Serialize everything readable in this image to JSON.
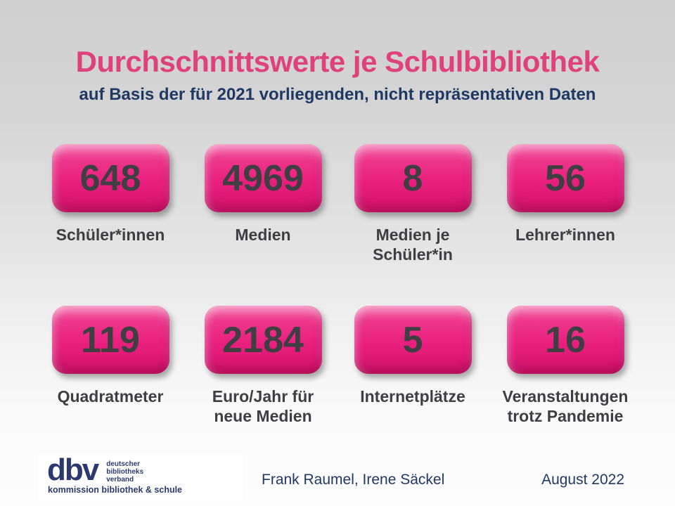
{
  "slide": {
    "title": "Durchschnittswerte je Schulbibliothek",
    "subtitle": "auf Basis der für 2021 vorliegenden, nicht repräsentativen Daten",
    "credits": "Frank Raumel, Irene Säckel",
    "date": "August 2022"
  },
  "stats": [
    {
      "value": "648",
      "label": "Schüler*innen"
    },
    {
      "value": "4969",
      "label": "Medien"
    },
    {
      "value": "8",
      "label": "Medien je\nSchüler*in"
    },
    {
      "value": "56",
      "label": "Lehrer*innen"
    },
    {
      "value": "119",
      "label": "Quadratmeter"
    },
    {
      "value": "2184",
      "label": "Euro/Jahr für\nneue Medien"
    },
    {
      "value": "5",
      "label": "Internetplätze"
    },
    {
      "value": "16",
      "label": "Veranstaltungen\ntrotz Pandemie"
    }
  ],
  "logo": {
    "abbr": "dbv",
    "lines": "deutscher\nbibliotheks\nverband",
    "sub": "kommission bibliothek & schule"
  },
  "colors": {
    "box_pink": "#e91f7e",
    "title_pink": "#df4279",
    "navy": "#1f3864",
    "logo_navy": "#2b3a6e",
    "text_gray": "#3f3f42"
  }
}
